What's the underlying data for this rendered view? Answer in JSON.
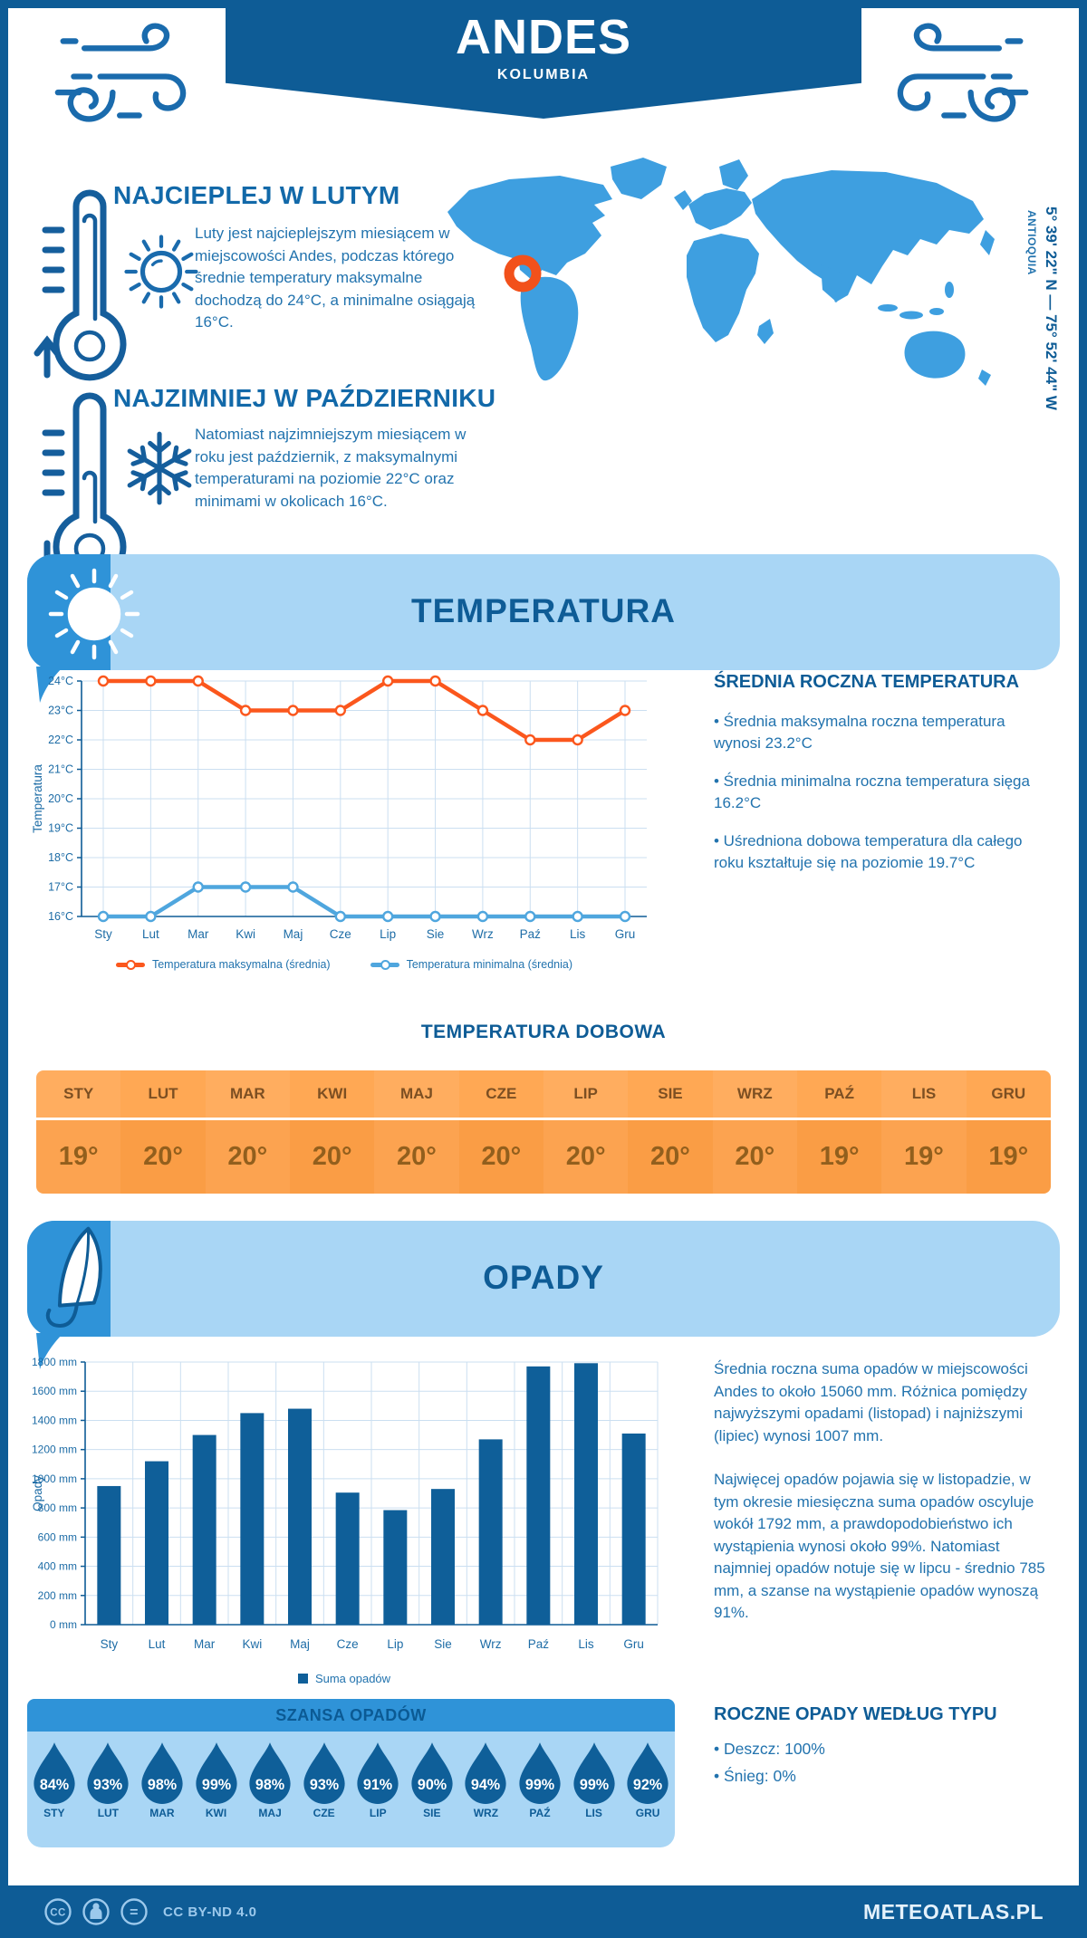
{
  "header": {
    "title": "ANDES",
    "subtitle": "KOLUMBIA"
  },
  "location": {
    "coordinates": "5° 39' 22\" N — 75° 52' 44\" W",
    "region": "ANTIOQUIA",
    "marker_color": "#F2511B",
    "map_color": "#3E9FE0"
  },
  "highlights": {
    "warmest": {
      "title": "NAJCIEPLEJ W LUTYM",
      "text": "Luty jest najcieplejszym miesiącem w miejscowości Andes, podczas którego średnie temperatury maksymalne dochodzą do 24°C, a minimalne osiągają 16°C."
    },
    "coldest": {
      "title": "NAJZIMNIEJ W PAŹDZIERNIKU",
      "text": "Natomiast najzimniejszym miesiącem w roku jest październik, z maksymalnymi temperaturami na poziomie 22°C oraz minimami w okolicach 16°C."
    }
  },
  "temperature": {
    "section_title": "TEMPERATURA",
    "annual_title": "ŚREDNIA ROCZNA TEMPERATURA",
    "annual_bullets": [
      "• Średnia maksymalna roczna temperatura wynosi 23.2°C",
      "• Średnia minimalna roczna temperatura sięga 16.2°C",
      "• Uśredniona dobowa temperatura dla całego roku kształtuje się na poziomie 19.7°C"
    ],
    "daily_title": "TEMPERATURA DOBOWA",
    "daily_months": [
      "STY",
      "LUT",
      "MAR",
      "KWI",
      "MAJ",
      "CZE",
      "LIP",
      "SIE",
      "WRZ",
      "PAŹ",
      "LIS",
      "GRU"
    ],
    "daily_values": [
      "19°",
      "20°",
      "20°",
      "20°",
      "20°",
      "20°",
      "20°",
      "20°",
      "20°",
      "19°",
      "19°",
      "19°"
    ]
  },
  "precipitation": {
    "section_title": "OPADY",
    "paragraphs": [
      "Średnia roczna suma opadów w miejscowości Andes to około 15060 mm. Różnica pomiędzy najwyższymi opadami (listopad) i najniższymi (lipiec) wynosi 1007 mm.",
      "Najwięcej opadów pojawia się w listopadzie, w tym okresie miesięczna suma opadów oscyluje wokół 1792 mm, a prawdopodobieństwo ich wystąpienia wynosi około 99%. Natomiast najmniej opadów notuje się w lipcu - średnio 785 mm, a szanse na wystąpienie opadów wynoszą 91%."
    ],
    "types_title": "ROCZNE OPADY WEDŁUG TYPU",
    "types_bullets": [
      "• Deszcz: 100%",
      "• Śnieg: 0%"
    ],
    "chance_title": "SZANSA OPADÓW",
    "chance_months": [
      "STY",
      "LUT",
      "MAR",
      "KWI",
      "MAJ",
      "CZE",
      "LIP",
      "SIE",
      "WRZ",
      "PAŹ",
      "LIS",
      "GRU"
    ],
    "chance_values": [
      "84%",
      "93%",
      "98%",
      "99%",
      "98%",
      "93%",
      "91%",
      "90%",
      "94%",
      "99%",
      "99%",
      "92%"
    ]
  },
  "footer": {
    "license": "CC BY-ND 4.0",
    "site": "METEOATLAS.PL"
  },
  "chart_data": [
    {
      "type": "line",
      "categories": [
        "Sty",
        "Lut",
        "Mar",
        "Kwi",
        "Maj",
        "Cze",
        "Lip",
        "Sie",
        "Wrz",
        "Paź",
        "Lis",
        "Gru"
      ],
      "series": [
        {
          "name": "Temperatura maksymalna (średnia)",
          "values": [
            24,
            24,
            24,
            23,
            23,
            23,
            24,
            24,
            23,
            22,
            22,
            23
          ],
          "color": "#FB571D"
        },
        {
          "name": "Temperatura minimalna (średnia)",
          "values": [
            16,
            16,
            17,
            17,
            17,
            16,
            16,
            16,
            16,
            16,
            16,
            16
          ],
          "color": "#4FA6DE"
        }
      ],
      "ylabel": "Temperatura",
      "ylim": [
        16,
        24
      ],
      "ytick_step": 1,
      "ytick_suffix": "°C",
      "grid": true,
      "legend_position": "bottom"
    },
    {
      "type": "bar",
      "categories": [
        "Sty",
        "Lut",
        "Mar",
        "Kwi",
        "Maj",
        "Cze",
        "Lip",
        "Sie",
        "Wrz",
        "Paź",
        "Lis",
        "Gru"
      ],
      "series": [
        {
          "name": "Suma opadów",
          "values": [
            950,
            1120,
            1300,
            1450,
            1480,
            905,
            785,
            930,
            1270,
            1770,
            1792,
            1310
          ],
          "color": "#0F5F99"
        }
      ],
      "ylabel": "Opady",
      "ylim": [
        0,
        1800
      ],
      "ytick_step": 200,
      "ytick_suffix": " mm",
      "grid": true,
      "legend_position": "bottom"
    }
  ]
}
